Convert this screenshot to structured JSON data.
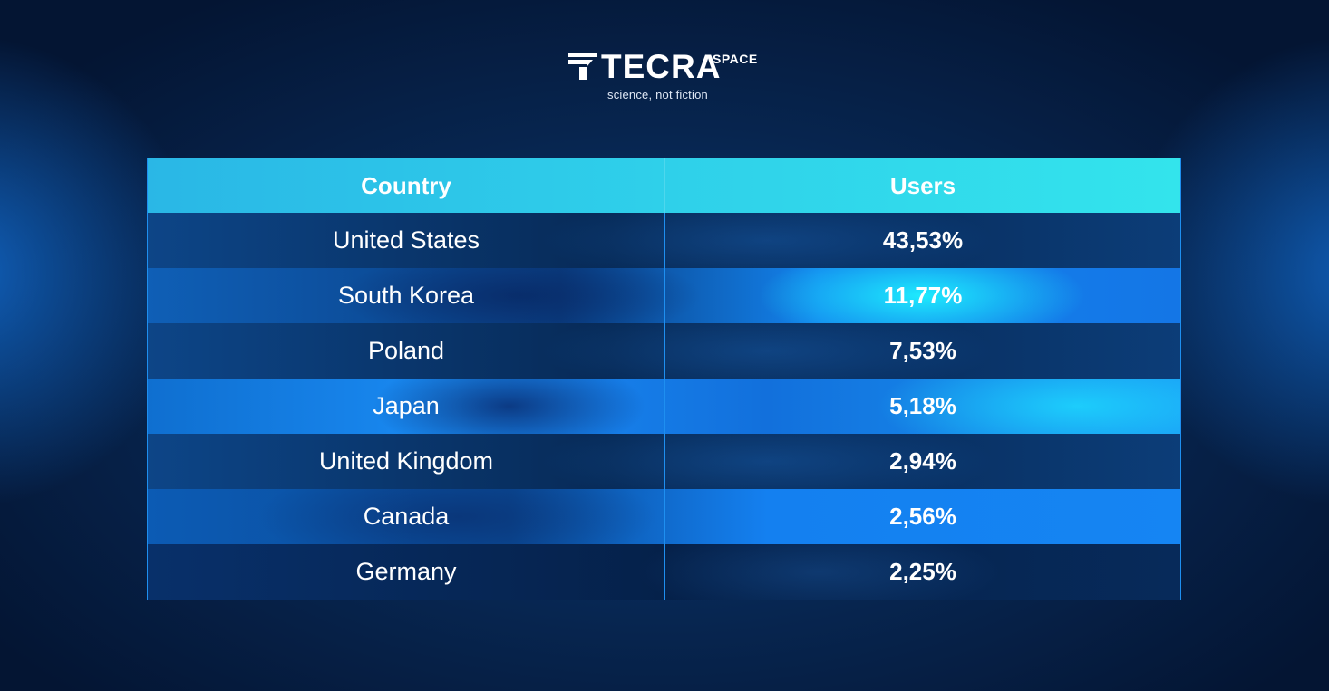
{
  "logo": {
    "wordmark": "TECRA",
    "superscript": "SPACE",
    "tagline": "science, not fiction",
    "icon": "tecra-t-logo-icon"
  },
  "table": {
    "headers": {
      "country": "Country",
      "users": "Users"
    },
    "rows": [
      {
        "country": "United States",
        "users": "43,53%"
      },
      {
        "country": "South Korea",
        "users": "11,77%"
      },
      {
        "country": "Poland",
        "users": "7,53%"
      },
      {
        "country": "Japan",
        "users": "5,18%"
      },
      {
        "country": "United Kingdom",
        "users": "2,94%"
      },
      {
        "country": "Canada",
        "users": "2,56%"
      },
      {
        "country": "Germany",
        "users": "2,25%"
      }
    ]
  },
  "colors": {
    "header_start": "#2ab7e6",
    "header_end": "#33e4ec",
    "border": "#1e8ff0",
    "background": "#041533",
    "text": "#ffffff"
  }
}
